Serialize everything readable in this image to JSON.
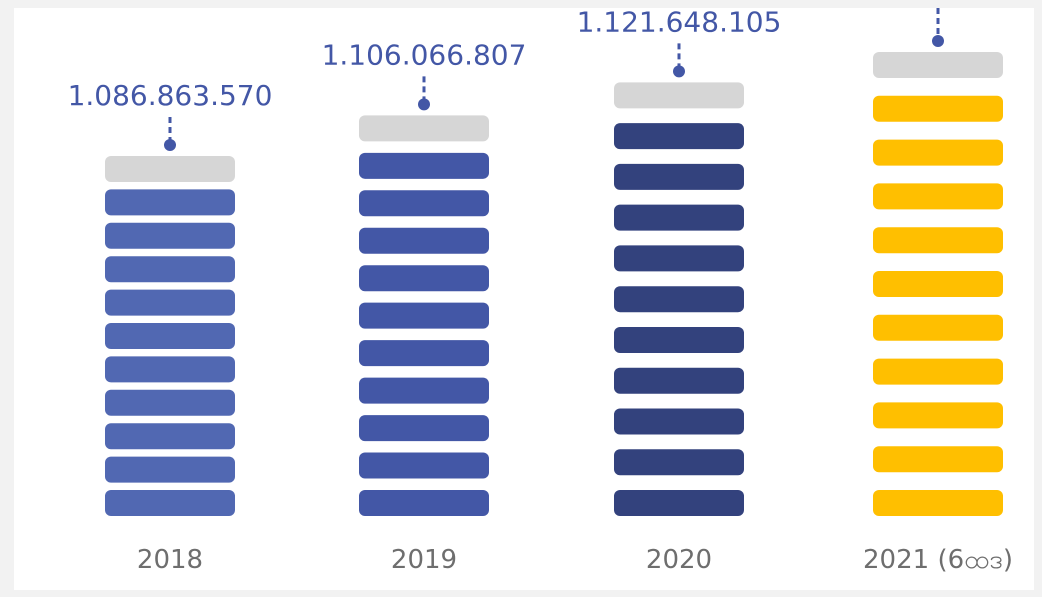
{
  "chart_data": {
    "type": "bar",
    "title": "",
    "xlabel": "",
    "ylabel": "",
    "categories": [
      "2018",
      "2019",
      "2020",
      "2021 (6ထဒ)"
    ],
    "values": [
      1086863570,
      1106066807,
      1121648105,
      1136000000
    ],
    "value_labels": [
      "1.086.863.570",
      "1.106.066.807",
      "1.121.648.105",
      ""
    ],
    "bar_colors": [
      "#5168b2",
      "#4357a6",
      "#33427d",
      "#ffbf00"
    ],
    "cap_color": "#d6d6d6",
    "label_color": "#4357a6",
    "legend": "none",
    "grid": false
  }
}
